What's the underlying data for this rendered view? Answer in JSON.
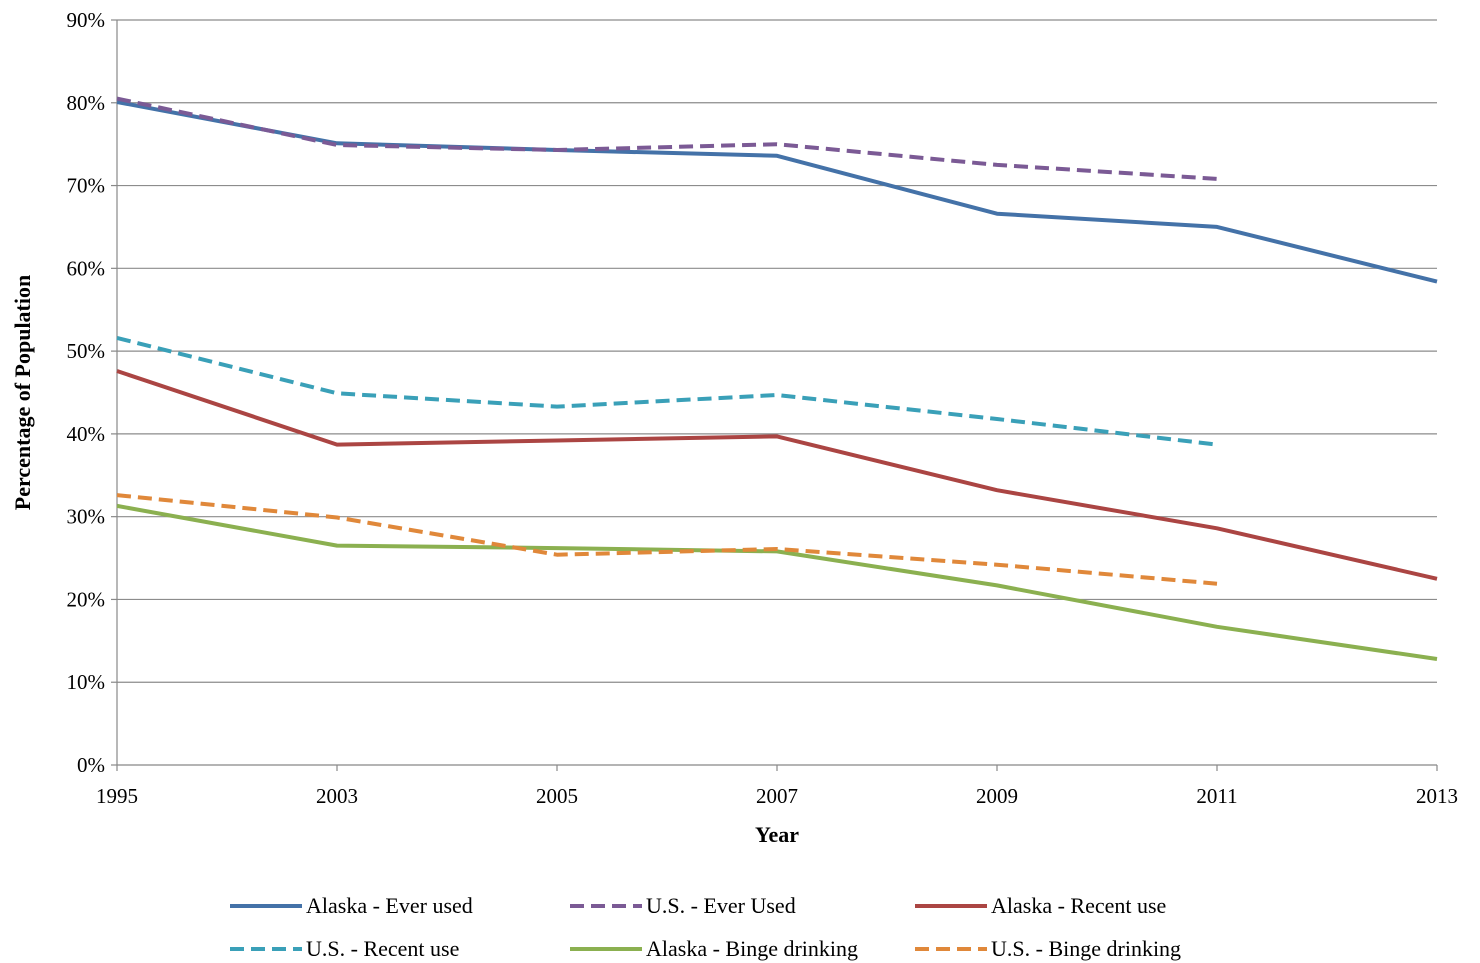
{
  "chart_data": {
    "type": "line",
    "title": "",
    "xlabel": "Year",
    "ylabel": "Percentage of Population",
    "categories": [
      "1995",
      "2003",
      "2005",
      "2007",
      "2009",
      "2011",
      "2013"
    ],
    "y_ticks": [
      "0%",
      "10%",
      "20%",
      "30%",
      "40%",
      "50%",
      "60%",
      "70%",
      "80%",
      "90%"
    ],
    "ylim": [
      0,
      90
    ],
    "grid": true,
    "legend_position": "bottom",
    "series": [
      {
        "name": "Alaska - Ever used",
        "color": "#4472a8",
        "dash": false,
        "values": [
          80.1,
          75.1,
          74.3,
          73.6,
          66.6,
          65.0,
          58.4
        ]
      },
      {
        "name": "U.S. - Ever Used",
        "color": "#7b5a95",
        "dash": true,
        "values": [
          80.5,
          74.9,
          74.3,
          75.0,
          72.5,
          70.8,
          null
        ]
      },
      {
        "name": "Alaska - Recent use",
        "color": "#ab4543",
        "dash": false,
        "values": [
          47.6,
          38.7,
          39.2,
          39.7,
          33.2,
          28.6,
          22.5
        ]
      },
      {
        "name": "U.S. - Recent use",
        "color": "#3aa0b8",
        "dash": true,
        "values": [
          51.6,
          44.9,
          43.3,
          44.7,
          41.8,
          38.7,
          null
        ]
      },
      {
        "name": "Alaska - Binge drinking",
        "color": "#8bb050",
        "dash": false,
        "values": [
          31.3,
          26.5,
          26.2,
          25.8,
          21.7,
          16.7,
          12.8
        ]
      },
      {
        "name": "U.S. - Binge drinking",
        "color": "#e0883a",
        "dash": true,
        "values": [
          32.6,
          29.9,
          25.4,
          26.1,
          24.2,
          21.9,
          null
        ]
      }
    ]
  }
}
